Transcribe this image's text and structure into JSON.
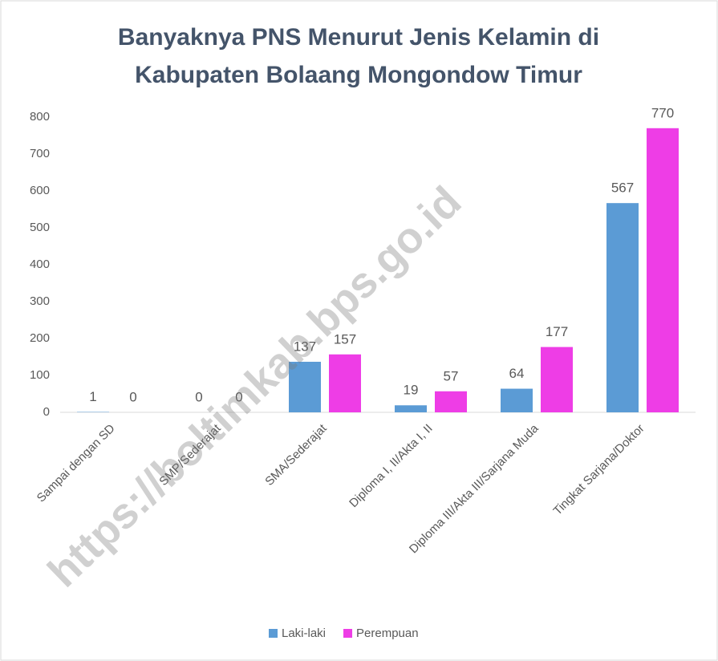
{
  "chart_data": {
    "type": "bar",
    "title": [
      "Banyaknya PNS Menurut Jenis Kelamin di",
      "Kabupaten Bolaang Mongondow Timur"
    ],
    "categories": [
      "Sampai dengan SD",
      "SMP/Sederajat",
      "SMA/Sederajat",
      "Diploma I, II/Akta I, II",
      "Diploma III/Akta III/Sarjana Muda",
      "Tingkat Sarjana/Doktor"
    ],
    "series": [
      {
        "name": "Laki-laki",
        "color": "#5b9bd5",
        "values": [
          1,
          0,
          137,
          19,
          64,
          567
        ]
      },
      {
        "name": "Perempuan",
        "color": "#ee3de6",
        "values": [
          0,
          0,
          157,
          57,
          177,
          770
        ]
      }
    ],
    "ylim": [
      0,
      800
    ],
    "yticks": [
      0,
      100,
      200,
      300,
      400,
      500,
      600,
      700,
      800
    ],
    "grid": false,
    "legend": "bottom",
    "watermark": "https://boltimkab.bps.go.id"
  }
}
